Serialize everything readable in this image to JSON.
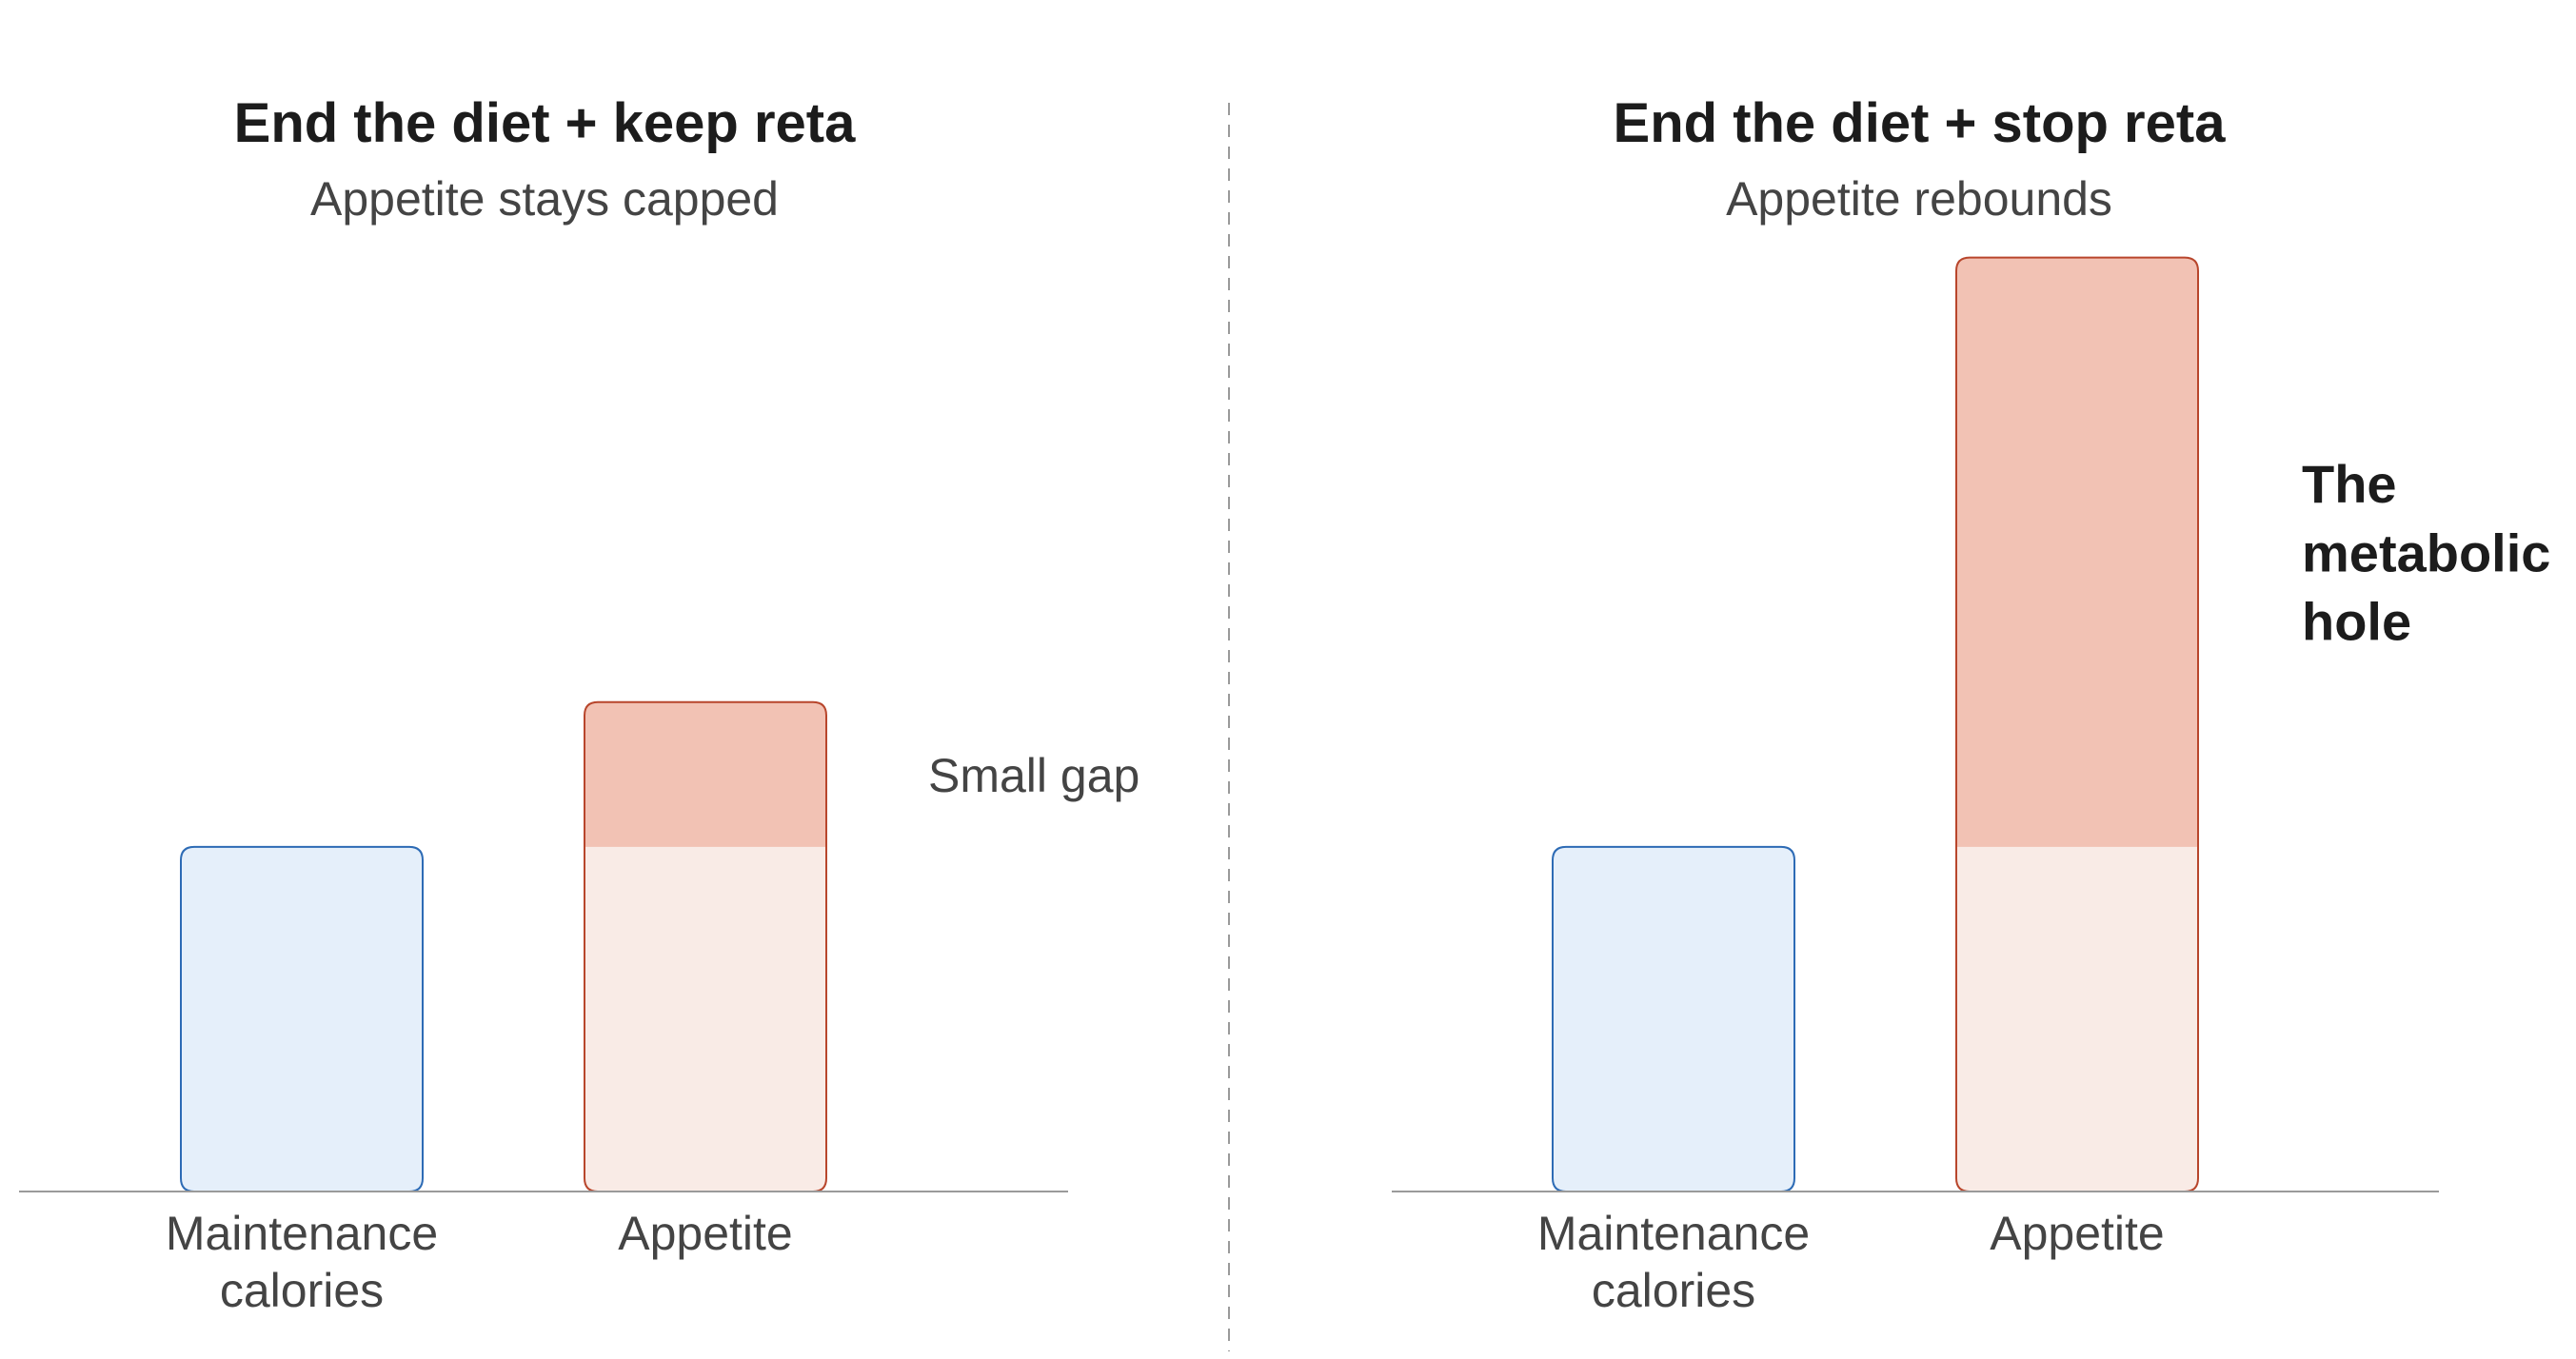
{
  "chart_data": [
    {
      "type": "bar",
      "title": "End the diet + keep reta",
      "subtitle": "Appetite stays capped",
      "categories": [
        "Maintenance calories",
        "Appetite"
      ],
      "category_lines": [
        [
          "Maintenance",
          "calories"
        ],
        [
          "Appetite"
        ]
      ],
      "baseline_level": 1.0,
      "values": [
        1.0,
        1.42
      ],
      "gap_label": [
        "Small gap"
      ],
      "ylim": [
        0,
        2.8
      ],
      "grid": false
    },
    {
      "type": "bar",
      "title": "End the diet + stop reta",
      "subtitle": "Appetite rebounds",
      "categories": [
        "Maintenance calories",
        "Appetite"
      ],
      "category_lines": [
        [
          "Maintenance",
          "calories"
        ],
        [
          "Appetite"
        ]
      ],
      "baseline_level": 1.0,
      "values": [
        1.0,
        2.71
      ],
      "gap_label": [
        "The",
        "metabolic",
        "hole"
      ],
      "ylim": [
        0,
        2.8
      ],
      "grid": false
    }
  ],
  "colors": {
    "maintenance_fill": "#e5effa",
    "maintenance_stroke": "#2d6bb5",
    "appetite_base_fill": "#f9ebe6",
    "appetite_gap_fill": "#f2c2b4",
    "appetite_stroke": "#b8462c",
    "axis": "#9a9a9a",
    "divider": "#9a9a9a",
    "title": "#1c1c1c",
    "label": "#444444"
  }
}
